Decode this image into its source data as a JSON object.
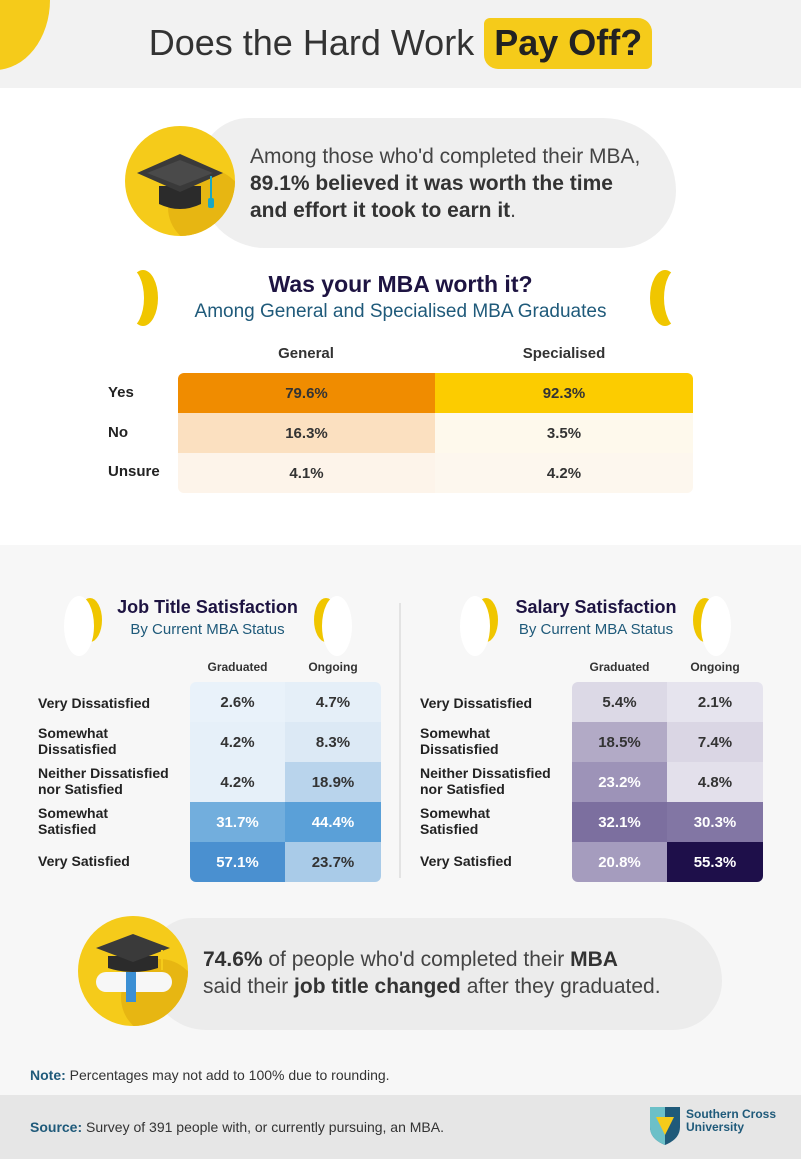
{
  "header": {
    "title_plain": "Does the Hard Work",
    "title_highlight": "Pay Off?"
  },
  "stat1": {
    "text_a": "Among those who'd completed their MBA, ",
    "text_bold": "89.1% believed it was worth the time and effort it took to earn it",
    "text_end": "."
  },
  "chart_data": [
    {
      "type": "table",
      "title": "Was your MBA worth it?",
      "subtitle": "Among General and Specialised MBA Graduates",
      "columns": [
        "General",
        "Specialised"
      ],
      "rows": [
        "Yes",
        "No",
        "Unsure"
      ],
      "values": [
        [
          "79.6%",
          "92.3%"
        ],
        [
          "16.3%",
          "3.5%"
        ],
        [
          "4.1%",
          "4.2%"
        ]
      ]
    },
    {
      "type": "heatmap",
      "title": "Job Title Satisfaction",
      "subtitle": "By Current MBA Status",
      "columns": [
        "Graduated",
        "Ongoing"
      ],
      "rows": [
        "Very Dissatisfied",
        "Somewhat Dissatisfied",
        "Neither Dissatisfied nor Satisfied",
        "Somewhat Satisfied",
        "Very Satisfied"
      ],
      "values": [
        [
          "2.6%",
          "4.7%"
        ],
        [
          "4.2%",
          "8.3%"
        ],
        [
          "4.2%",
          "18.9%"
        ],
        [
          "31.7%",
          "44.4%"
        ],
        [
          "57.1%",
          "23.7%"
        ]
      ]
    },
    {
      "type": "heatmap",
      "title": "Salary Satisfaction",
      "subtitle": "By Current MBA Status",
      "columns": [
        "Graduated",
        "Ongoing"
      ],
      "rows": [
        "Very Dissatisfied",
        "Somewhat Dissatisfied",
        "Neither Dissatisfied nor Satisfied",
        "Somewhat Satisfied",
        "Very Satisfied"
      ],
      "values": [
        [
          "5.4%",
          "2.1%"
        ],
        [
          "18.5%",
          "7.4%"
        ],
        [
          "23.2%",
          "4.8%"
        ],
        [
          "32.1%",
          "30.3%"
        ],
        [
          "20.8%",
          "55.3%"
        ]
      ]
    }
  ],
  "stat2": {
    "pct": "74.6%",
    "text_a": " of people who'd completed their ",
    "bold_a": "MBA",
    "text_b": "said their ",
    "bold_b": "job title changed",
    "text_c": " after they graduated."
  },
  "note": {
    "label": "Note:",
    "text": " Percentages may not add to 100% due to rounding."
  },
  "source": {
    "label": "Source:",
    "text": " Survey of 391 people with, or currently pursuing, an MBA."
  },
  "logo": {
    "line1": "Southern Cross",
    "line2": "University"
  },
  "colors": {
    "accent_yellow": "#f5cb1a",
    "general_yes": "#f08c00",
    "specialised_yes": "#fccc00",
    "title_navy": "#1e1442",
    "sub_teal": "#1f5a7a"
  }
}
